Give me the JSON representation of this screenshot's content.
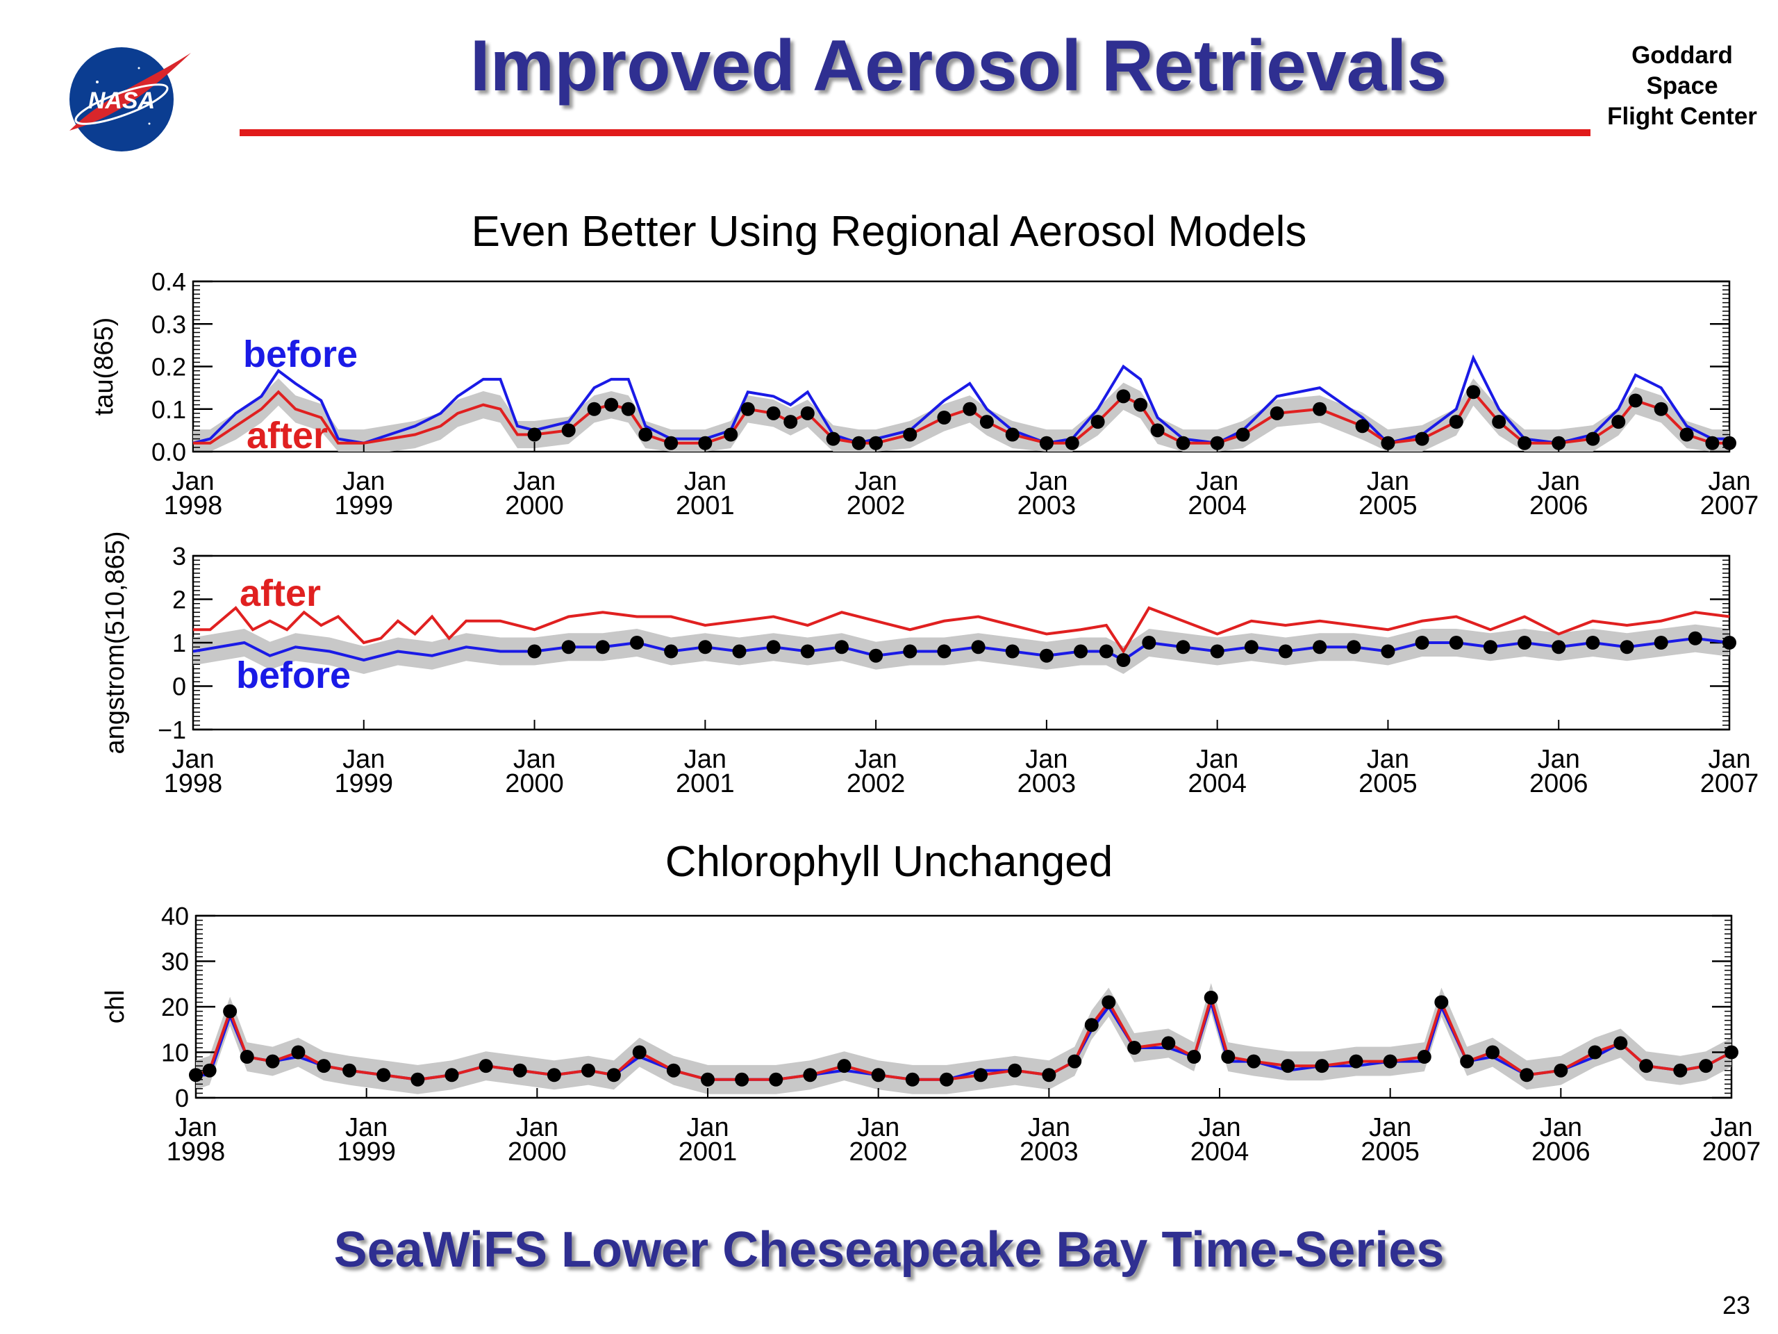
{
  "slide": {
    "title": "Improved Aerosol Retrievals",
    "center_lines": [
      "Goddard",
      "Space",
      "Flight Center"
    ],
    "logo_text": "NASA",
    "subtitle_top": "Even Better Using Regional Aerosol Models",
    "subtitle_bottom": "Chlorophyll Unchanged",
    "footer": "SeaWiFS Lower Cheseapeake Bay Time-Series",
    "page_number": "23",
    "colors": {
      "title": "#2f2f91",
      "rule": "#e11a1a",
      "before": "#1a1ae6",
      "after": "#e02020",
      "band": "#c8c8c8",
      "points": "#000000"
    }
  },
  "chart_data": [
    {
      "type": "line",
      "ylabel": "tau(865)",
      "ylim": [
        0,
        0.4
      ],
      "yticks": [
        "0.0",
        "0.1",
        "0.2",
        "0.3",
        "0.4"
      ],
      "ytick_values": [
        0,
        0.1,
        0.2,
        0.3,
        0.4
      ],
      "xlim": [
        1998.0,
        2007.0
      ],
      "xticks": [
        [
          "Jan",
          "1998"
        ],
        [
          "Jan",
          "1999"
        ],
        [
          "Jan",
          "2000"
        ],
        [
          "Jan",
          "2001"
        ],
        [
          "Jan",
          "2002"
        ],
        [
          "Jan",
          "2003"
        ],
        [
          "Jan",
          "2004"
        ],
        [
          "Jan",
          "2005"
        ],
        [
          "Jan",
          "2006"
        ],
        [
          "Jan",
          "2007"
        ]
      ],
      "annotations": [
        {
          "text": "before",
          "color": "#1a1ae6"
        },
        {
          "text": "after",
          "color": "#e02020"
        }
      ],
      "series": [
        {
          "name": "before",
          "color": "#1a1ae6",
          "x": [
            1998.0,
            1998.1,
            1998.25,
            1998.4,
            1998.5,
            1998.6,
            1998.75,
            1998.85,
            1999.0,
            1999.15,
            1999.3,
            1999.45,
            1999.55,
            1999.7,
            1999.8,
            1999.9,
            2000.0,
            2000.2,
            2000.35,
            2000.45,
            2000.55,
            2000.65,
            2000.8,
            2001.0,
            2001.15,
            2001.25,
            2001.4,
            2001.5,
            2001.6,
            2001.75,
            2001.9,
            2002.0,
            2002.2,
            2002.4,
            2002.55,
            2002.65,
            2002.8,
            2003.0,
            2003.15,
            2003.3,
            2003.45,
            2003.55,
            2003.65,
            2003.8,
            2004.0,
            2004.15,
            2004.35,
            2004.6,
            2004.85,
            2005.0,
            2005.2,
            2005.4,
            2005.5,
            2005.65,
            2005.8,
            2006.0,
            2006.2,
            2006.35,
            2006.45,
            2006.6,
            2006.75,
            2006.9,
            2007.0
          ],
          "y": [
            0.02,
            0.03,
            0.09,
            0.13,
            0.19,
            0.16,
            0.12,
            0.03,
            0.02,
            0.04,
            0.06,
            0.09,
            0.13,
            0.17,
            0.17,
            0.06,
            0.05,
            0.07,
            0.15,
            0.17,
            0.17,
            0.06,
            0.03,
            0.03,
            0.05,
            0.14,
            0.13,
            0.11,
            0.14,
            0.04,
            0.02,
            0.03,
            0.05,
            0.12,
            0.16,
            0.1,
            0.05,
            0.02,
            0.03,
            0.1,
            0.2,
            0.17,
            0.08,
            0.03,
            0.02,
            0.05,
            0.13,
            0.15,
            0.08,
            0.02,
            0.04,
            0.1,
            0.22,
            0.1,
            0.03,
            0.02,
            0.04,
            0.1,
            0.18,
            0.15,
            0.06,
            0.03,
            0.03
          ]
        },
        {
          "name": "after",
          "color": "#e02020",
          "x": [
            1998.0,
            1998.1,
            1998.25,
            1998.4,
            1998.5,
            1998.6,
            1998.75,
            1998.85,
            1999.0,
            1999.15,
            1999.3,
            1999.45,
            1999.55,
            1999.7,
            1999.8,
            1999.9,
            2000.0,
            2000.2,
            2000.35,
            2000.45,
            2000.55,
            2000.65,
            2000.8,
            2001.0,
            2001.15,
            2001.25,
            2001.4,
            2001.5,
            2001.6,
            2001.75,
            2001.9,
            2002.0,
            2002.2,
            2002.4,
            2002.55,
            2002.65,
            2002.8,
            2003.0,
            2003.15,
            2003.3,
            2003.45,
            2003.55,
            2003.65,
            2003.8,
            2004.0,
            2004.15,
            2004.35,
            2004.6,
            2004.85,
            2005.0,
            2005.2,
            2005.4,
            2005.5,
            2005.65,
            2005.8,
            2006.0,
            2006.2,
            2006.35,
            2006.45,
            2006.6,
            2006.75,
            2006.9,
            2007.0
          ],
          "y": [
            0.02,
            0.02,
            0.06,
            0.1,
            0.14,
            0.1,
            0.08,
            0.02,
            0.02,
            0.03,
            0.04,
            0.06,
            0.09,
            0.11,
            0.1,
            0.04,
            0.04,
            0.05,
            0.1,
            0.11,
            0.1,
            0.04,
            0.02,
            0.02,
            0.04,
            0.1,
            0.09,
            0.07,
            0.09,
            0.03,
            0.02,
            0.02,
            0.04,
            0.08,
            0.1,
            0.07,
            0.04,
            0.02,
            0.02,
            0.07,
            0.13,
            0.11,
            0.05,
            0.02,
            0.02,
            0.04,
            0.09,
            0.1,
            0.06,
            0.02,
            0.03,
            0.07,
            0.14,
            0.07,
            0.02,
            0.02,
            0.03,
            0.07,
            0.12,
            0.1,
            0.04,
            0.02,
            0.02
          ]
        }
      ]
    },
    {
      "type": "line",
      "ylabel": "angstrom(510,865)",
      "ylim": [
        -1,
        3
      ],
      "yticks": [
        "−1",
        "0",
        "1",
        "2",
        "3"
      ],
      "ytick_values": [
        -1,
        0,
        1,
        2,
        3
      ],
      "xlim": [
        1998.0,
        2007.0
      ],
      "xticks": [
        [
          "Jan",
          "1998"
        ],
        [
          "Jan",
          "1999"
        ],
        [
          "Jan",
          "2000"
        ],
        [
          "Jan",
          "2001"
        ],
        [
          "Jan",
          "2002"
        ],
        [
          "Jan",
          "2003"
        ],
        [
          "Jan",
          "2004"
        ],
        [
          "Jan",
          "2005"
        ],
        [
          "Jan",
          "2006"
        ],
        [
          "Jan",
          "2007"
        ]
      ],
      "annotations": [
        {
          "text": "after",
          "color": "#e02020"
        },
        {
          "text": "before",
          "color": "#1a1ae6"
        }
      ],
      "series": [
        {
          "name": "after",
          "color": "#e02020",
          "x": [
            1998.0,
            1998.1,
            1998.25,
            1998.35,
            1998.45,
            1998.55,
            1998.65,
            1998.75,
            1998.85,
            1999.0,
            1999.1,
            1999.2,
            1999.3,
            1999.4,
            1999.5,
            1999.6,
            1999.8,
            2000.0,
            2000.2,
            2000.4,
            2000.6,
            2000.8,
            2001.0,
            2001.2,
            2001.4,
            2001.6,
            2001.8,
            2002.0,
            2002.2,
            2002.4,
            2002.6,
            2002.8,
            2003.0,
            2003.2,
            2003.35,
            2003.45,
            2003.6,
            2003.8,
            2004.0,
            2004.2,
            2004.4,
            2004.6,
            2004.8,
            2005.0,
            2005.2,
            2005.4,
            2005.6,
            2005.8,
            2006.0,
            2006.2,
            2006.4,
            2006.6,
            2006.8,
            2007.0
          ],
          "y": [
            1.3,
            1.3,
            1.8,
            1.3,
            1.5,
            1.3,
            1.7,
            1.4,
            1.6,
            1.0,
            1.1,
            1.5,
            1.2,
            1.6,
            1.1,
            1.5,
            1.5,
            1.3,
            1.6,
            1.7,
            1.6,
            1.6,
            1.4,
            1.5,
            1.6,
            1.4,
            1.7,
            1.5,
            1.3,
            1.5,
            1.6,
            1.4,
            1.2,
            1.3,
            1.4,
            0.8,
            1.8,
            1.5,
            1.2,
            1.5,
            1.4,
            1.5,
            1.4,
            1.3,
            1.5,
            1.6,
            1.3,
            1.6,
            1.2,
            1.5,
            1.4,
            1.5,
            1.7,
            1.6
          ]
        },
        {
          "name": "before",
          "color": "#1a1ae6",
          "x": [
            1998.0,
            1998.15,
            1998.3,
            1998.45,
            1998.6,
            1998.8,
            1999.0,
            1999.2,
            1999.4,
            1999.6,
            1999.8,
            2000.0,
            2000.2,
            2000.4,
            2000.6,
            2000.8,
            2001.0,
            2001.2,
            2001.4,
            2001.6,
            2001.8,
            2002.0,
            2002.2,
            2002.4,
            2002.6,
            2002.8,
            2003.0,
            2003.2,
            2003.35,
            2003.45,
            2003.6,
            2003.8,
            2004.0,
            2004.2,
            2004.4,
            2004.6,
            2004.8,
            2005.0,
            2005.2,
            2005.4,
            2005.6,
            2005.8,
            2006.0,
            2006.2,
            2006.4,
            2006.6,
            2006.8,
            2007.0
          ],
          "y": [
            0.8,
            0.9,
            1.0,
            0.7,
            0.9,
            0.8,
            0.6,
            0.8,
            0.7,
            0.9,
            0.8,
            0.8,
            0.9,
            0.9,
            1.0,
            0.8,
            0.9,
            0.8,
            0.9,
            0.8,
            0.9,
            0.7,
            0.8,
            0.8,
            0.9,
            0.8,
            0.7,
            0.8,
            0.8,
            0.6,
            1.0,
            0.9,
            0.8,
            0.9,
            0.8,
            0.9,
            0.9,
            0.8,
            1.0,
            1.0,
            0.9,
            1.0,
            0.9,
            1.0,
            0.9,
            1.0,
            1.1,
            1.0
          ]
        }
      ]
    },
    {
      "type": "line",
      "ylabel": "chl",
      "ylim": [
        0,
        40
      ],
      "yticks": [
        "0",
        "10",
        "20",
        "30",
        "40"
      ],
      "ytick_values": [
        0,
        10,
        20,
        30,
        40
      ],
      "xlim": [
        1998.0,
        2007.0
      ],
      "xticks": [
        [
          "Jan",
          "1998"
        ],
        [
          "Jan",
          "1999"
        ],
        [
          "Jan",
          "2000"
        ],
        [
          "Jan",
          "2001"
        ],
        [
          "Jan",
          "2002"
        ],
        [
          "Jan",
          "2003"
        ],
        [
          "Jan",
          "2004"
        ],
        [
          "Jan",
          "2005"
        ],
        [
          "Jan",
          "2006"
        ],
        [
          "Jan",
          "2007"
        ]
      ],
      "series": [
        {
          "name": "before",
          "color": "#1a1ae6",
          "x": [
            1998.0,
            1998.08,
            1998.2,
            1998.3,
            1998.45,
            1998.6,
            1998.75,
            1998.9,
            1999.1,
            1999.3,
            1999.5,
            1999.7,
            1999.9,
            2000.1,
            2000.3,
            2000.45,
            2000.6,
            2000.8,
            2001.0,
            2001.2,
            2001.4,
            2001.6,
            2001.8,
            2002.0,
            2002.2,
            2002.4,
            2002.6,
            2002.8,
            2003.0,
            2003.15,
            2003.25,
            2003.35,
            2003.5,
            2003.7,
            2003.85,
            2003.95,
            2004.05,
            2004.2,
            2004.4,
            2004.6,
            2004.8,
            2005.0,
            2005.2,
            2005.3,
            2005.45,
            2005.6,
            2005.8,
            2006.0,
            2006.2,
            2006.35,
            2006.5,
            2006.7,
            2006.85,
            2007.0
          ],
          "y": [
            5,
            5,
            18,
            9,
            8,
            9,
            7,
            6,
            5,
            4,
            5,
            7,
            6,
            5,
            6,
            5,
            9,
            6,
            4,
            4,
            4,
            5,
            6,
            5,
            4,
            4,
            6,
            6,
            5,
            8,
            15,
            20,
            11,
            11,
            9,
            21,
            8,
            8,
            6,
            7,
            7,
            8,
            8,
            20,
            8,
            9,
            5,
            6,
            9,
            12,
            7,
            6,
            7,
            10
          ]
        },
        {
          "name": "after",
          "color": "#e02020",
          "x": [
            1998.0,
            1998.08,
            1998.2,
            1998.3,
            1998.45,
            1998.6,
            1998.75,
            1998.9,
            1999.1,
            1999.3,
            1999.5,
            1999.7,
            1999.9,
            2000.1,
            2000.3,
            2000.45,
            2000.6,
            2000.8,
            2001.0,
            2001.2,
            2001.4,
            2001.6,
            2001.8,
            2002.0,
            2002.2,
            2002.4,
            2002.6,
            2002.8,
            2003.0,
            2003.15,
            2003.25,
            2003.35,
            2003.5,
            2003.7,
            2003.85,
            2003.95,
            2004.05,
            2004.2,
            2004.4,
            2004.6,
            2004.8,
            2005.0,
            2005.2,
            2005.3,
            2005.45,
            2005.6,
            2005.8,
            2006.0,
            2006.2,
            2006.35,
            2006.5,
            2006.7,
            2006.85,
            2007.0
          ],
          "y": [
            5,
            6,
            19,
            9,
            8,
            10,
            7,
            6,
            5,
            4,
            5,
            7,
            6,
            5,
            6,
            5,
            10,
            6,
            4,
            4,
            4,
            5,
            7,
            5,
            4,
            4,
            5,
            6,
            5,
            8,
            16,
            21,
            11,
            12,
            9,
            22,
            9,
            8,
            7,
            7,
            8,
            8,
            9,
            21,
            8,
            10,
            5,
            6,
            10,
            12,
            7,
            6,
            7,
            10
          ]
        }
      ]
    }
  ]
}
